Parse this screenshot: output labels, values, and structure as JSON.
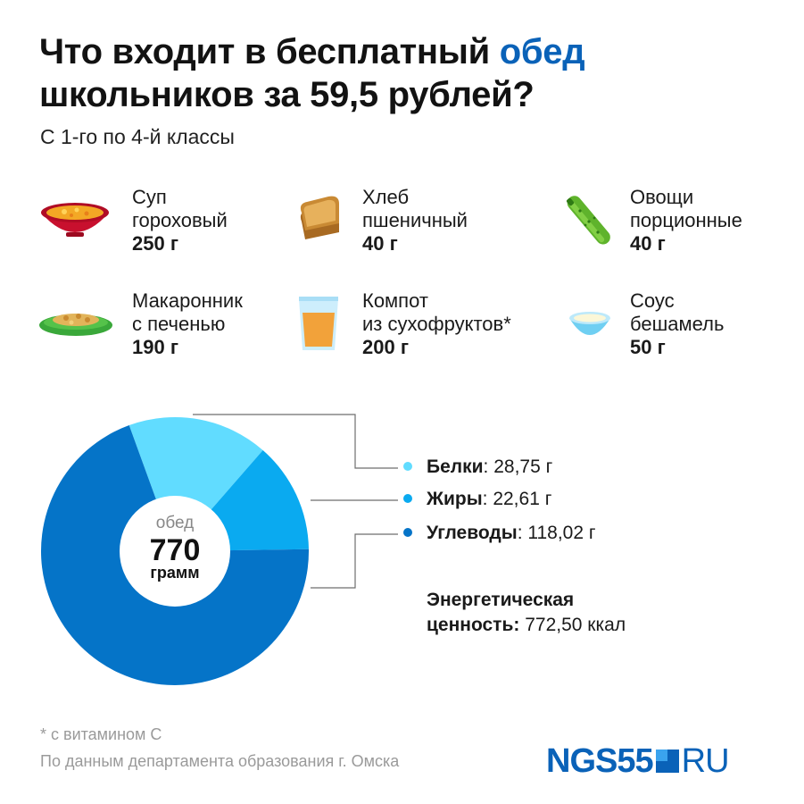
{
  "header": {
    "title_part1": "Что входит в бесплатный ",
    "title_accent": "обед",
    "title_part2": "школьников за 59,5 рублей?",
    "subtitle": "С 1-го по 4-й классы"
  },
  "menu": [
    {
      "name": "Суп\nгороховый",
      "weight": "250 г",
      "icon": "soup-bowl-icon"
    },
    {
      "name": "Хлеб\nпшеничный",
      "weight": "40 г",
      "icon": "bread-icon"
    },
    {
      "name": "Овощи\nпорционные",
      "weight": "40 г",
      "icon": "cucumber-icon"
    },
    {
      "name": "Макаронник\nс печенью",
      "weight": "190 г",
      "icon": "pasta-plate-icon"
    },
    {
      "name": "Компот\nиз сухофруктов*",
      "weight": "200 г",
      "icon": "compote-glass-icon"
    },
    {
      "name": "Соус\nбешамель",
      "weight": "50 г",
      "icon": "sauce-bowl-icon"
    }
  ],
  "chart_data": {
    "type": "pie",
    "center_label_top": "обед",
    "center_value": "770",
    "center_label_bottom": "грамм",
    "slices": [
      {
        "name": "Белки",
        "value": 28.75,
        "value_text": "28,75 г",
        "color": "#61dcff"
      },
      {
        "name": "Жиры",
        "value": 22.61,
        "value_text": "22,61 г",
        "color": "#0aaaf0"
      },
      {
        "name": "Углеводы",
        "value": 118.02,
        "value_text": "118,02 г",
        "color": "#0574c8"
      }
    ],
    "legend_position": "right"
  },
  "energy": {
    "label_line1": "Энергетическая",
    "label_line2": "ценность",
    "value": "772,50 ккал"
  },
  "footer": {
    "footnote": "* с витамином С",
    "source": "По данным департамента образования г. Омска"
  },
  "logo": {
    "part1": "NGS55",
    "part2": "RU"
  }
}
